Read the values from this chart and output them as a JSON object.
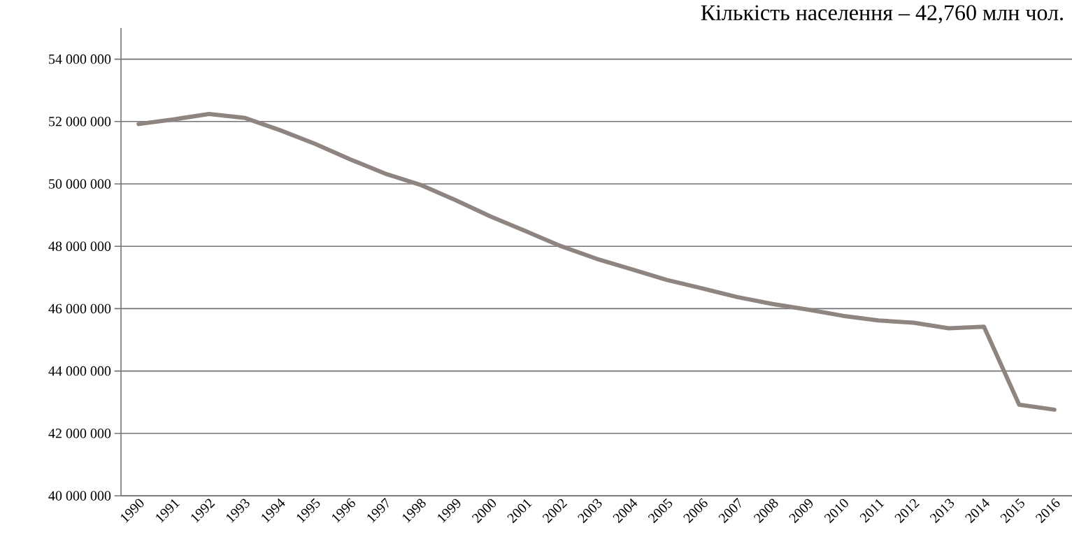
{
  "chart_data": {
    "type": "line",
    "title": "Кількість населення – 42,760 млн чол.",
    "categories": [
      "1990",
      "1991",
      "1992",
      "1993",
      "1994",
      "1995",
      "1996",
      "1997",
      "1998",
      "1999",
      "2000",
      "2001",
      "2002",
      "2003",
      "2004",
      "2005",
      "2006",
      "2007",
      "2008",
      "2009",
      "2010",
      "2011",
      "2012",
      "2013",
      "2014",
      "2015",
      "2016"
    ],
    "series": [
      {
        "color": "#8f8580",
        "values": [
          51920000,
          52070000,
          52240000,
          52120000,
          51730000,
          51290000,
          50790000,
          50330000,
          49970000,
          49480000,
          48950000,
          48480000,
          48000000,
          47600000,
          47260000,
          46920000,
          46650000,
          46370000,
          46150000,
          45970000,
          45770000,
          45620000,
          45550000,
          45370000,
          45420000,
          42920000,
          42760000
        ]
      }
    ],
    "ylim": [
      40000000,
      55000000
    ],
    "yticks": [
      {
        "value": 40000000,
        "label": "40 000 000"
      },
      {
        "value": 42000000,
        "label": "42 000 000"
      },
      {
        "value": 44000000,
        "label": "44 000 000"
      },
      {
        "value": 46000000,
        "label": "46 000 000"
      },
      {
        "value": 48000000,
        "label": "48 000 000"
      },
      {
        "value": 50000000,
        "label": "50 000 000"
      },
      {
        "value": 52000000,
        "label": "52 000 000"
      },
      {
        "value": 54000000,
        "label": "54 000 000"
      }
    ],
    "grid": "y",
    "marker": "none",
    "line_style": "solid"
  }
}
